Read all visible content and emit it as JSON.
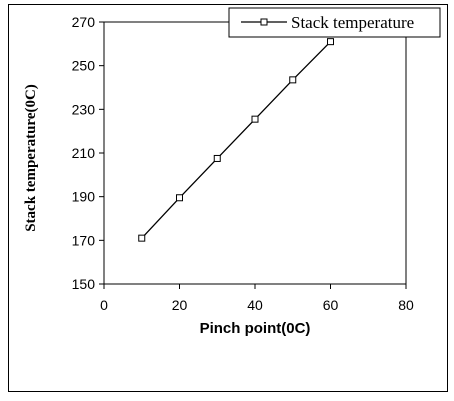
{
  "chart_data": {
    "type": "line",
    "xlabel": "Pinch point(0C)",
    "ylabel": "Stack temperature(0C)",
    "xlim": [
      0,
      80
    ],
    "ylim": [
      150,
      270
    ],
    "xticks": [
      0,
      20,
      40,
      60,
      80
    ],
    "yticks": [
      150,
      170,
      190,
      210,
      230,
      250,
      270
    ],
    "grid": false,
    "legend_position": "top-right",
    "series": [
      {
        "name": "Stack temperature",
        "x": [
          10,
          20,
          30,
          40,
          50,
          60
        ],
        "y": [
          171,
          189.5,
          207.5,
          225.5,
          243.5,
          261
        ],
        "marker": "square",
        "color": "#000000"
      }
    ]
  }
}
